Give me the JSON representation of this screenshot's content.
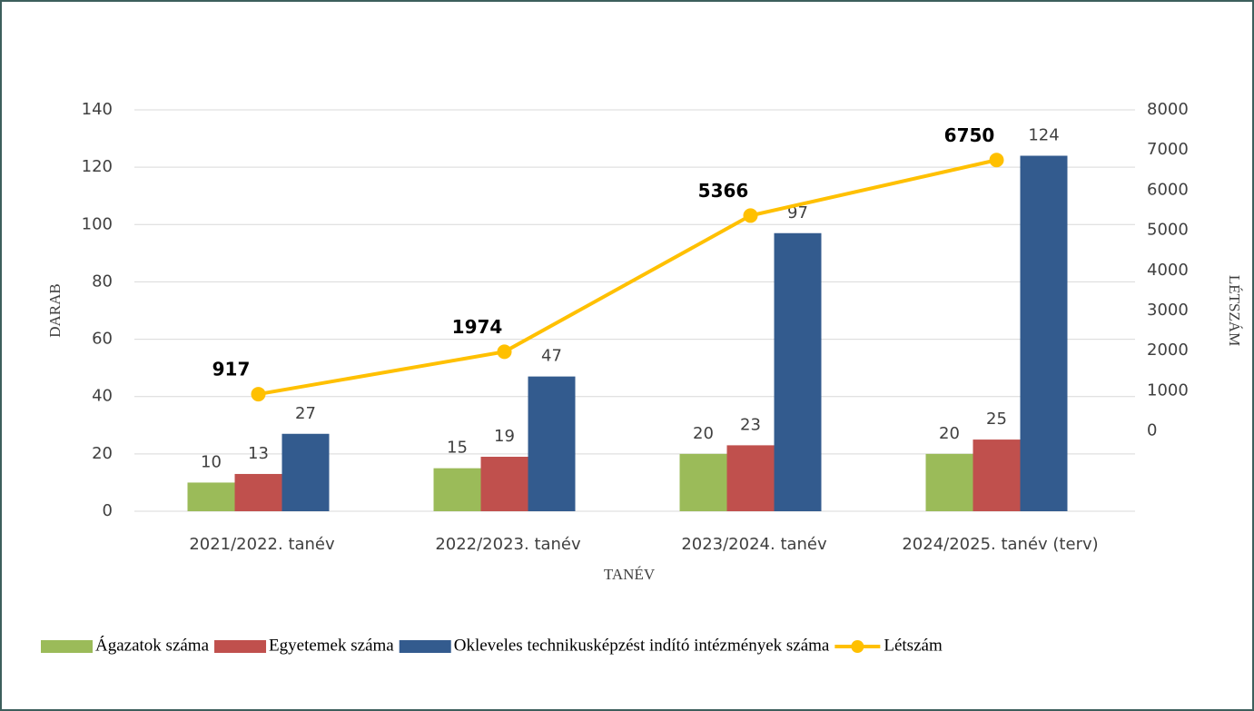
{
  "chart_data": {
    "type": "bar",
    "categories": [
      "2021/2022. tanév",
      "2022/2023. tanév",
      "2023/2024. tanév",
      "2024/2025. tanév (terv)"
    ],
    "series": [
      {
        "name": "Ágazatok száma",
        "color": "#9bbb59",
        "values": [
          10,
          15,
          20,
          20
        ]
      },
      {
        "name": "Egyetemek száma",
        "color": "#c0504d",
        "values": [
          13,
          19,
          23,
          25
        ]
      },
      {
        "name": "Okleveles technikusképzést indító intézmények száma",
        "color": "#335b8e",
        "values": [
          27,
          47,
          97,
          124
        ]
      },
      {
        "name": "Létszám",
        "color": "#ffc000",
        "type": "line",
        "axis": "y2",
        "values": [
          917,
          1974,
          5366,
          6750
        ]
      }
    ],
    "ylabel": "DARAB",
    "y2label": "LÉTSZÁM",
    "xlabel": "TANÉV",
    "ylim": [
      0,
      140
    ],
    "yticks": [
      0,
      20,
      40,
      60,
      80,
      100,
      120,
      140
    ],
    "y2lim": [
      -2000,
      8000
    ],
    "y2ticks": [
      0,
      1000,
      2000,
      3000,
      4000,
      5000,
      6000,
      7000,
      8000
    ],
    "grid": true,
    "legend": "bottom"
  }
}
